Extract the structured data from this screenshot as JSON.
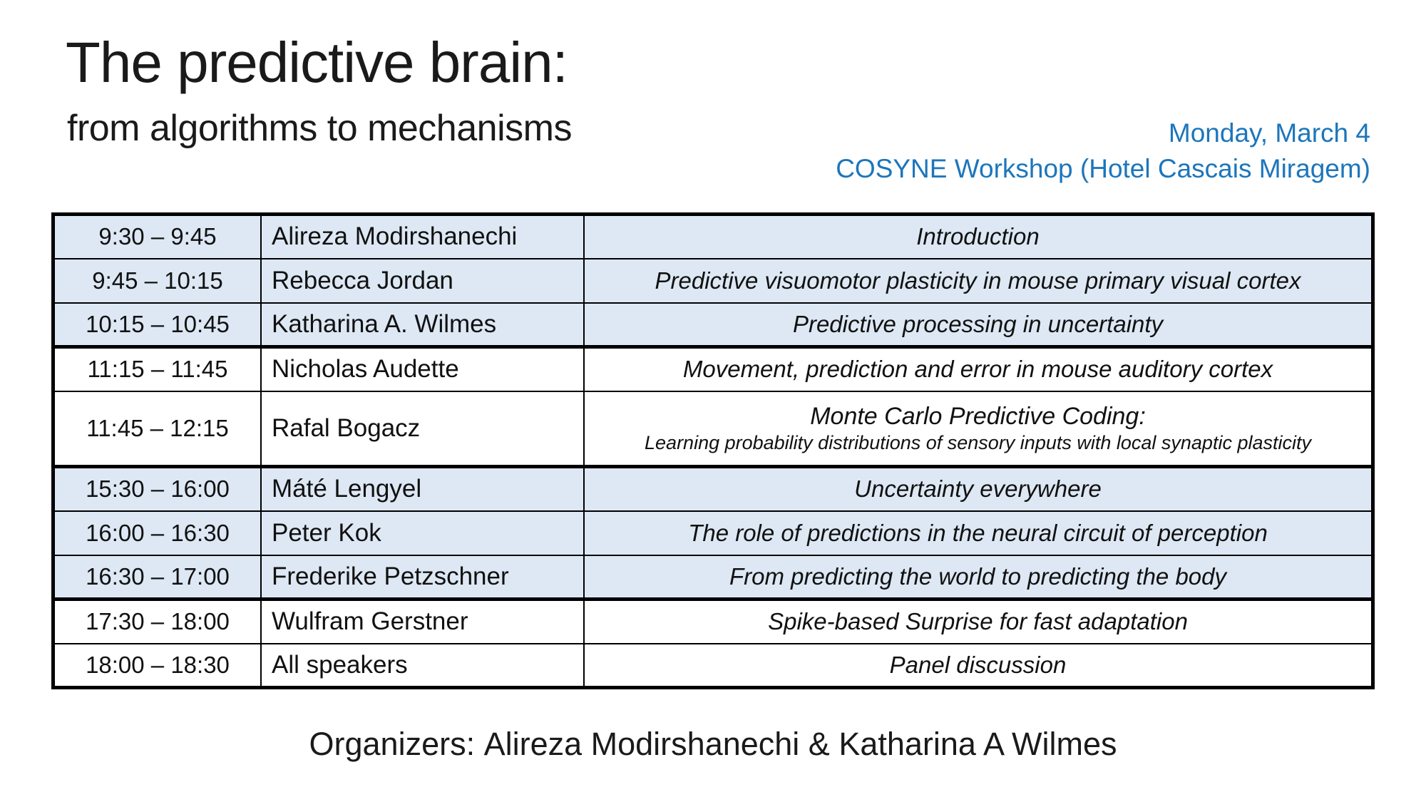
{
  "header": {
    "title": "The predictive brain:",
    "subtitle": "from algorithms to mechanisms",
    "date": "Monday, March 4",
    "venue": "COSYNE Workshop (Hotel Cascais Miragem)"
  },
  "colors": {
    "accent_blue": "#1c76bc",
    "row_blue": "#dde8f4",
    "row_white": "#ffffff",
    "border_black": "#000000"
  },
  "schedule": {
    "rows": [
      {
        "time": "9:30 – 9:45",
        "speaker": "Alireza Modirshanechi",
        "title": "Introduction"
      },
      {
        "time": "9:45 – 10:15",
        "speaker": "Rebecca Jordan",
        "title": "Predictive visuomotor plasticity in mouse primary visual cortex"
      },
      {
        "time": "10:15 – 10:45",
        "speaker": "Katharina A. Wilmes",
        "title": "Predictive processing in uncertainty"
      },
      {
        "time": "11:15 – 11:45",
        "speaker": "Nicholas Audette",
        "title": "Movement, prediction and error in mouse auditory cortex"
      },
      {
        "time": "11:45 – 12:15",
        "speaker": "Rafal Bogacz",
        "title": "Monte Carlo Predictive Coding:",
        "subtitle": "Learning probability distributions of sensory inputs with local synaptic plasticity"
      },
      {
        "time": "15:30 – 16:00",
        "speaker": "Máté Lengyel",
        "title": "Uncertainty everywhere"
      },
      {
        "time": "16:00 – 16:30",
        "speaker": "Peter Kok",
        "title": "The role of predictions in the neural circuit of perception"
      },
      {
        "time": "16:30 – 17:00",
        "speaker": "Frederike Petzschner",
        "title": "From predicting the world to predicting the body"
      },
      {
        "time": "17:30 – 18:00",
        "speaker": "Wulfram Gerstner",
        "title": "Spike-based Surprise for fast adaptation"
      },
      {
        "time": "18:00 – 18:30",
        "speaker": "All speakers",
        "title": "Panel discussion"
      }
    ]
  },
  "footer": {
    "organizers_label": "Organizers: ",
    "organizers_names": "Alireza Modirshanechi & Katharina A Wilmes"
  }
}
